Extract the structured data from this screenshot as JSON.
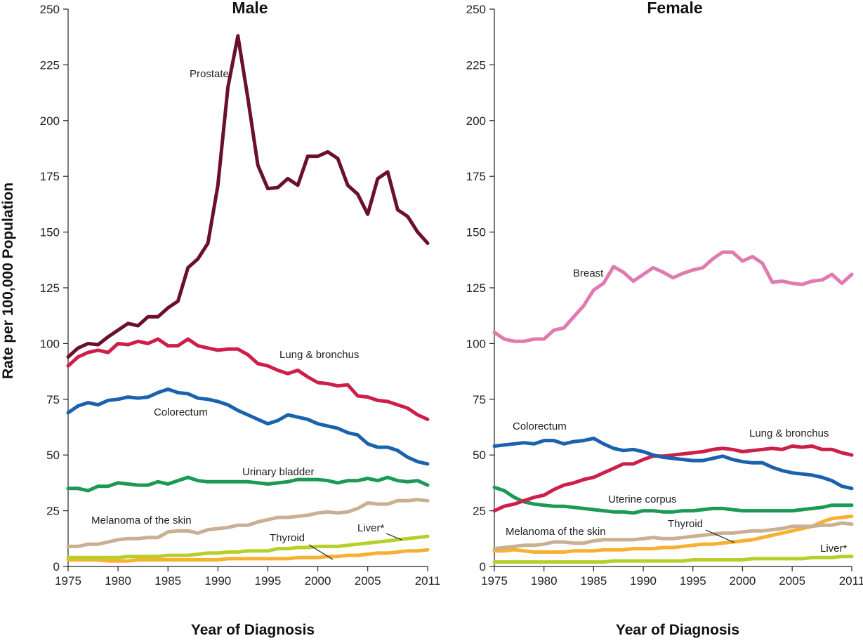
{
  "chart_data": [
    {
      "type": "line",
      "title": "Male",
      "xlabel": "Year of Diagnosis",
      "ylabel": "Rate per 100,000 Population",
      "ylim": [
        0,
        250
      ],
      "xlim": [
        1975,
        2011
      ],
      "yticks": [
        "0",
        "25",
        "50",
        "75",
        "100",
        "125",
        "150",
        "175",
        "200",
        "225",
        "250"
      ],
      "xticks": [
        "1975",
        "1980",
        "1985",
        "1990",
        "1995",
        "2000",
        "2005",
        "2011"
      ],
      "x": [
        1975,
        1976,
        1977,
        1978,
        1979,
        1980,
        1981,
        1982,
        1983,
        1984,
        1985,
        1986,
        1987,
        1988,
        1989,
        1990,
        1991,
        1992,
        1993,
        1994,
        1995,
        1996,
        1997,
        1998,
        1999,
        2000,
        2001,
        2002,
        2003,
        2004,
        2005,
        2006,
        2007,
        2008,
        2009,
        2010,
        2011
      ],
      "series": [
        {
          "name": "Prostate",
          "color": "#6b0f2e",
          "values": [
            94,
            98,
            100,
            99.5,
            103,
            106,
            109,
            108,
            112,
            112,
            116,
            119,
            134,
            138,
            145,
            171,
            215,
            238,
            210,
            180,
            169.5,
            170,
            174,
            171,
            184,
            184,
            186,
            183,
            171,
            167,
            158,
            174,
            177,
            160,
            157,
            150,
            145
          ]
        },
        {
          "name": "Lung & bronchus",
          "color": "#cc1f4a",
          "values": [
            90,
            94,
            96,
            97,
            96,
            100,
            99.5,
            101,
            100,
            102,
            99,
            99,
            102,
            99,
            98,
            97,
            97.5,
            97.5,
            95,
            91,
            90,
            88,
            86.5,
            88,
            85,
            82.5,
            82,
            81,
            81.5,
            76.5,
            76,
            74.5,
            74,
            72.5,
            71,
            68,
            66
          ]
        },
        {
          "name": "Colorectum",
          "color": "#1a62ad",
          "values": [
            69,
            72,
            73.5,
            72.5,
            74.5,
            75,
            76,
            75.5,
            76,
            78,
            79.5,
            78,
            77.5,
            75.5,
            75,
            74,
            72.5,
            70,
            68,
            66,
            64,
            65.5,
            68,
            67,
            66,
            64,
            63,
            62,
            60,
            59,
            55,
            53.5,
            53.5,
            52,
            49,
            47,
            46
          ]
        },
        {
          "name": "Urinary bladder",
          "color": "#1c9a55",
          "values": [
            35,
            35,
            34,
            36,
            36,
            37.5,
            37,
            36.5,
            36.5,
            38,
            37,
            38.5,
            40,
            38.5,
            38,
            38,
            38,
            38,
            38,
            37.5,
            37,
            37.5,
            38,
            39,
            39,
            39,
            38.5,
            37.5,
            38.5,
            38.5,
            39.5,
            38.5,
            40,
            38.5,
            38,
            38.5,
            36.5
          ]
        },
        {
          "name": "Melanoma of the skin",
          "color": "#c9b093",
          "values": [
            9,
            9,
            10,
            10,
            11,
            12,
            12.5,
            12.5,
            13,
            13,
            15.5,
            16,
            16,
            15,
            16.5,
            17,
            17.5,
            18.5,
            18.5,
            20,
            21,
            22,
            22,
            22.5,
            23,
            24,
            24.5,
            24,
            24.5,
            26,
            28.5,
            28,
            28,
            29.5,
            29.5,
            30,
            29.5
          ]
        },
        {
          "name": "Liver*",
          "color": "#b8cf2a",
          "values": [
            4,
            4,
            4,
            4,
            4,
            4,
            4.5,
            4.5,
            4.5,
            4.5,
            5,
            5,
            5,
            5.5,
            6,
            6,
            6.5,
            6.5,
            7,
            7,
            7,
            8,
            8,
            8.5,
            8.5,
            9,
            9,
            9,
            9.5,
            10,
            10.5,
            11,
            11.5,
            12,
            12.5,
            13,
            13.5
          ]
        },
        {
          "name": "Thyroid",
          "color": "#f7b030",
          "values": [
            3,
            3,
            3,
            3,
            2.5,
            2.5,
            2.5,
            3,
            3,
            3,
            3,
            3,
            3,
            3,
            3,
            3,
            3.5,
            3.5,
            3.5,
            3.5,
            3.5,
            3.5,
            3.5,
            4,
            4,
            4,
            4.5,
            4.5,
            5,
            5,
            5.5,
            6,
            6,
            6.5,
            7,
            7,
            7.5
          ]
        }
      ],
      "annotations": [
        "Prostate",
        "Lung & bronchus",
        "Colorectum",
        "Urinary bladder",
        "Melanoma of the skin",
        "Thyroid",
        "Liver*"
      ]
    },
    {
      "type": "line",
      "title": "Female",
      "xlabel": "Year of Diagnosis",
      "ylabel": "",
      "ylim": [
        0,
        250
      ],
      "xlim": [
        1975,
        2011
      ],
      "yticks": [
        "0",
        "25",
        "50",
        "75",
        "100",
        "125",
        "150",
        "175",
        "200",
        "225",
        "250"
      ],
      "xticks": [
        "1975",
        "1980",
        "1985",
        "1990",
        "1995",
        "2000",
        "2005",
        "2011"
      ],
      "x": [
        1975,
        1976,
        1977,
        1978,
        1979,
        1980,
        1981,
        1982,
        1983,
        1984,
        1985,
        1986,
        1987,
        1988,
        1989,
        1990,
        1991,
        1992,
        1993,
        1994,
        1995,
        1996,
        1997,
        1998,
        1999,
        2000,
        2001,
        2002,
        2003,
        2004,
        2005,
        2006,
        2007,
        2008,
        2009,
        2010,
        2011
      ],
      "series": [
        {
          "name": "Breast",
          "color": "#e07ab0",
          "values": [
            105,
            102,
            101,
            101,
            102,
            102,
            106,
            107,
            112,
            117,
            124,
            127,
            134.5,
            132,
            128,
            131,
            134,
            132,
            129.5,
            131.5,
            133,
            134,
            138,
            141,
            141,
            137,
            139,
            136,
            127.5,
            128,
            127,
            126.5,
            128,
            128.5,
            131,
            127,
            131
          ]
        },
        {
          "name": "Colorectum",
          "color": "#1a62ad",
          "values": [
            54,
            54.5,
            55,
            55.5,
            55,
            56.5,
            56.5,
            55,
            56,
            56.5,
            57.5,
            55,
            53,
            52,
            52.5,
            51.5,
            50,
            49,
            48.5,
            48,
            47.5,
            47.5,
            48.5,
            49.5,
            48,
            47,
            46.5,
            46.5,
            44.5,
            43,
            42,
            41.5,
            41,
            40,
            38.5,
            36,
            35
          ]
        },
        {
          "name": "Lung & bronchus",
          "color": "#cc1f4a",
          "values": [
            25,
            27,
            28,
            29.5,
            31,
            32,
            34.5,
            36.5,
            37.5,
            39,
            40,
            42,
            44,
            46,
            46,
            48,
            49.5,
            49.5,
            50,
            50.5,
            51,
            51.5,
            52.5,
            53,
            52.5,
            51.5,
            52,
            52.5,
            53,
            52.5,
            54,
            53.5,
            54,
            52.5,
            52.5,
            51,
            50
          ]
        },
        {
          "name": "Uterine corpus",
          "color": "#1c9a55",
          "values": [
            35.5,
            34,
            31,
            29,
            28,
            27.5,
            27,
            27,
            26.5,
            26,
            25.5,
            25,
            24.5,
            24.5,
            24,
            25,
            25,
            24.5,
            24.5,
            25,
            25,
            25.5,
            26,
            26,
            25.5,
            25,
            25,
            25,
            25,
            25,
            25,
            25.5,
            26,
            26.5,
            27.5,
            27.5,
            27.5
          ]
        },
        {
          "name": "Melanoma of the skin",
          "color": "#c9b093",
          "values": [
            8,
            8.5,
            9,
            9.5,
            9.5,
            10,
            11,
            11,
            10.5,
            10.5,
            11.5,
            12,
            12,
            12,
            12,
            12.5,
            13,
            12.5,
            12.5,
            13,
            13.5,
            14,
            14.5,
            15,
            15,
            15.5,
            16,
            16,
            16.5,
            17,
            18,
            18,
            18,
            18.5,
            18.5,
            19.5,
            19
          ]
        },
        {
          "name": "Thyroid",
          "color": "#f7b030",
          "values": [
            7,
            7,
            7.5,
            7,
            6.5,
            6.5,
            6.5,
            6.5,
            7,
            7,
            7,
            7.5,
            7.5,
            7.5,
            8,
            8,
            8,
            8.5,
            8.5,
            9,
            9.5,
            10,
            10,
            10.5,
            11,
            11.5,
            12,
            13,
            14,
            15,
            16,
            17,
            18,
            20,
            21.5,
            22,
            22.5
          ]
        },
        {
          "name": "Liver*",
          "color": "#b8cf2a",
          "values": [
            2,
            2,
            2,
            2,
            2,
            2,
            2,
            2,
            2,
            2,
            2,
            2,
            2.5,
            2.5,
            2.5,
            2.5,
            2.5,
            2.5,
            2.5,
            2.5,
            3,
            3,
            3,
            3,
            3,
            3,
            3.5,
            3.5,
            3.5,
            3.5,
            3.5,
            3.5,
            4,
            4,
            4,
            4.5,
            4.5
          ]
        }
      ],
      "annotations": [
        "Breast",
        "Colorectum",
        "Lung & bronchus",
        "Uterine corpus",
        "Melanoma of the skin",
        "Thyroid",
        "Liver*"
      ]
    }
  ]
}
